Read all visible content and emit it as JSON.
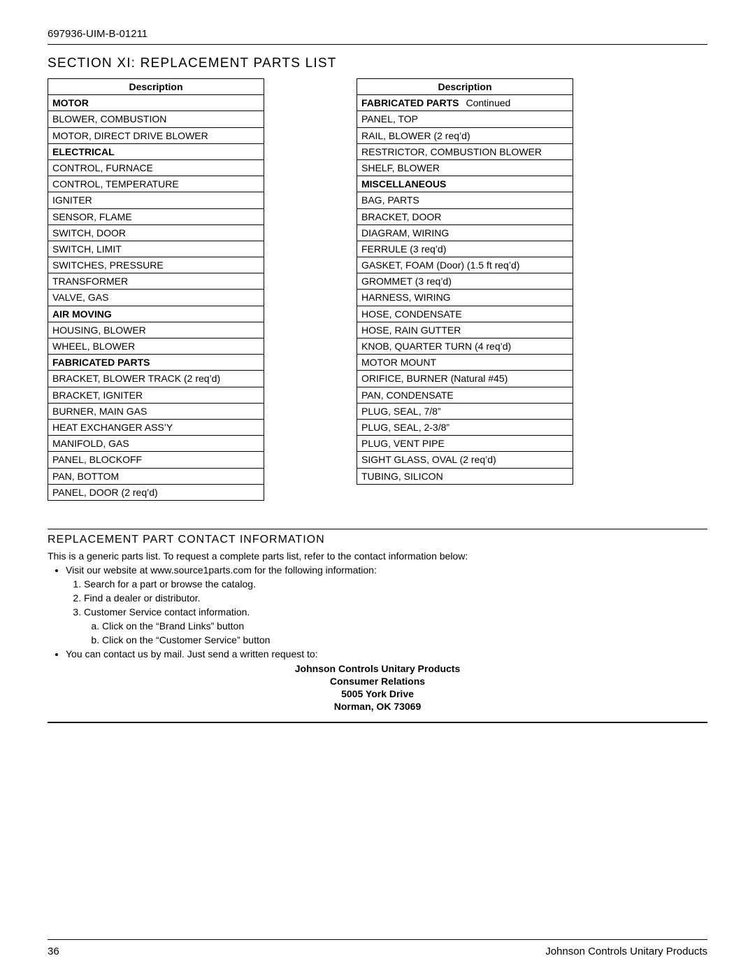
{
  "doc_id": "697936-UIM-B-01211",
  "section_title": "SECTION XI: REPLACEMENT PARTS LIST",
  "page_number": "36",
  "footer_company": "Johnson Controls Unitary Products",
  "table_left": {
    "header": "Description",
    "rows": [
      {
        "text": "MOTOR",
        "category": true
      },
      {
        "text": "BLOWER, COMBUSTION"
      },
      {
        "text": "MOTOR, DIRECT DRIVE BLOWER"
      },
      {
        "text": "ELECTRICAL",
        "category": true
      },
      {
        "text": "CONTROL, FURNACE"
      },
      {
        "text": "CONTROL, TEMPERATURE"
      },
      {
        "text": "IGNITER"
      },
      {
        "text": "SENSOR, FLAME"
      },
      {
        "text": "SWITCH, DOOR"
      },
      {
        "text": "SWITCH, LIMIT"
      },
      {
        "text": "SWITCHES, PRESSURE"
      },
      {
        "text": "TRANSFORMER"
      },
      {
        "text": "VALVE, GAS"
      },
      {
        "text": "AIR MOVING",
        "category": true
      },
      {
        "text": "HOUSING, BLOWER"
      },
      {
        "text": "WHEEL, BLOWER"
      },
      {
        "text": "FABRICATED PARTS",
        "category": true
      },
      {
        "text": "BRACKET, BLOWER TRACK (2 req’d)"
      },
      {
        "text": "BRACKET, IGNITER"
      },
      {
        "text": "BURNER, MAIN GAS"
      },
      {
        "text": "HEAT EXCHANGER ASS’Y"
      },
      {
        "text": "MANIFOLD, GAS"
      },
      {
        "text": "PANEL, BLOCKOFF"
      },
      {
        "text": "PAN, BOTTOM"
      },
      {
        "text": "PANEL, DOOR (2 req’d)"
      }
    ]
  },
  "table_right": {
    "header": "Description",
    "rows": [
      {
        "text": "FABRICATED PARTS",
        "category": true,
        "continued": "Continued"
      },
      {
        "text": "PANEL, TOP"
      },
      {
        "text": "RAIL, BLOWER (2 req’d)"
      },
      {
        "text": "RESTRICTOR, COMBUSTION BLOWER"
      },
      {
        "text": "SHELF, BLOWER"
      },
      {
        "text": "MISCELLANEOUS",
        "category": true
      },
      {
        "text": "BAG, PARTS"
      },
      {
        "text": "BRACKET, DOOR"
      },
      {
        "text": "DIAGRAM, WIRING"
      },
      {
        "text": "FERRULE (3 req’d)"
      },
      {
        "text": "GASKET, FOAM (Door) (1.5 ft req’d)"
      },
      {
        "text": "GROMMET (3 req’d)"
      },
      {
        "text": "HARNESS, WIRING"
      },
      {
        "text": "HOSE, CONDENSATE"
      },
      {
        "text": "HOSE, RAIN GUTTER"
      },
      {
        "text": "KNOB, QUARTER TURN (4 req’d)"
      },
      {
        "text": "MOTOR MOUNT"
      },
      {
        "text": "ORIFICE, BURNER (Natural #45)"
      },
      {
        "text": "PAN, CONDENSATE"
      },
      {
        "text": "PLUG, SEAL, 7/8”"
      },
      {
        "text": "PLUG, SEAL, 2-3/8”"
      },
      {
        "text": "PLUG, VENT PIPE"
      },
      {
        "text": "SIGHT GLASS, OVAL (2 req’d)"
      },
      {
        "text": "TUBING, SILICON"
      }
    ]
  },
  "contact": {
    "subtitle": "REPLACEMENT PART CONTACT INFORMATION",
    "intro": "This is a generic parts list. To request a complete parts list, refer to the contact information below:",
    "bullet1": "Visit our website at www.source1parts.com for the following information:",
    "num1": "Search for a part or browse the catalog.",
    "num2": "Find a dealer or distributor.",
    "num3": "Customer Service contact information.",
    "alpha_a": "Click on the “Brand Links” button",
    "alpha_b": "Click on the “Customer Service” button",
    "bullet2": "You can contact us by mail. Just send a written request to:",
    "address": {
      "l1": "Johnson Controls Unitary Products",
      "l2": "Consumer Relations",
      "l3": "5005 York Drive",
      "l4": "Norman, OK 73069"
    }
  }
}
